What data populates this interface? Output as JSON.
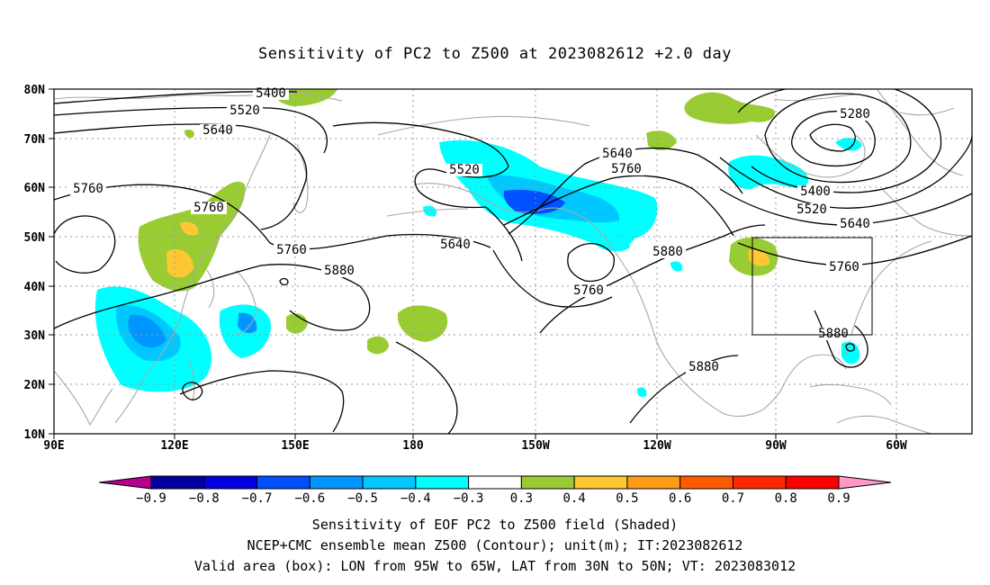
{
  "title": "Sensitivity of PC2 to Z500 at 2023082612 +2.0 day",
  "map": {
    "lat_labels": [
      "80N",
      "70N",
      "60N",
      "50N",
      "40N",
      "30N",
      "20N",
      "10N"
    ],
    "lon_labels": [
      "90E",
      "120E",
      "150E",
      "180",
      "150W",
      "120W",
      "90W",
      "60W"
    ],
    "coastline_color": "#a8a8a8",
    "grid_color": "#9a9a9a",
    "valid_box": {
      "lon_from": "95W",
      "lon_to": "65W",
      "lat_from": "30N",
      "lat_to": "50N"
    }
  },
  "contours": {
    "unit": "m",
    "labels": [
      "5400",
      "5520",
      "5640",
      "5760",
      "5760",
      "5760",
      "5880",
      "5520",
      "5640",
      "5640",
      "5760",
      "5880",
      "5760",
      "5280",
      "5400",
      "5520",
      "5640",
      "5760",
      "5880",
      "5880"
    ]
  },
  "colorbar": {
    "labels": [
      "-0.9",
      "-0.8",
      "-0.7",
      "-0.6",
      "-0.5",
      "-0.4",
      "-0.3",
      "0.3",
      "0.4",
      "0.5",
      "0.6",
      "0.7",
      "0.8",
      "0.9"
    ],
    "colors": [
      "#b4008c",
      "#0000a0",
      "#0000e0",
      "#0050ff",
      "#0096ff",
      "#00c8ff",
      "#00ffff",
      "#ffffff",
      "#99cc33",
      "#ffc832",
      "#ff9b14",
      "#ff5a00",
      "#ff2800",
      "#ff0000",
      "#ff9ac8"
    ]
  },
  "shading_colors": {
    "pos_0_3": "#99cc33",
    "pos_0_4": "#ffc832",
    "pos_0_5": "#ff9b14",
    "neg_0_3": "#00ffff",
    "neg_0_4": "#00c8ff",
    "neg_0_5": "#0096ff",
    "neg_0_6": "#0050ff"
  },
  "footer": {
    "line1": "Sensitivity of EOF PC2 to Z500 field (Shaded)",
    "line2": "NCEP+CMC ensemble mean Z500 (Contour); unit(m); IT:2023082612",
    "line3": "Valid area (box): LON from 95W to 65W, LAT from 30N to 50N; VT: 2023083012"
  }
}
